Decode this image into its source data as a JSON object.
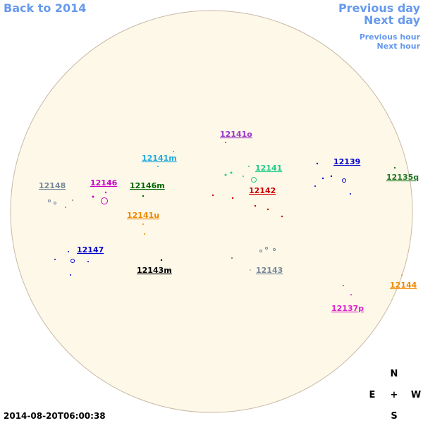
{
  "nav": {
    "back": "Back to 2014",
    "previous_day": "Previous day",
    "next_day": "Next day",
    "previous_hour": "Previous hour",
    "next_hour": "Next hour"
  },
  "timestamp": "2014-08-20T06:00:38",
  "compass": {
    "north": "N",
    "east": "E",
    "center": "+",
    "west": "W",
    "south": "S"
  },
  "regions": [
    {
      "label": "12141o",
      "color": "#9933cc"
    },
    {
      "label": "12141m",
      "color": "#22aadd"
    },
    {
      "label": "12141",
      "color": "#22cc88"
    },
    {
      "label": "12139",
      "color": "#0000cc"
    },
    {
      "label": "12135q",
      "color": "#227722"
    },
    {
      "label": "12148",
      "color": "#778899"
    },
    {
      "label": "12146",
      "color": "#cc00cc"
    },
    {
      "label": "12146m",
      "color": "#006600"
    },
    {
      "label": "12142",
      "color": "#cc0000"
    },
    {
      "label": "12141u",
      "color": "#ee8800"
    },
    {
      "label": "12147",
      "color": "#0000cc"
    },
    {
      "label": "12143m",
      "color": "#000000"
    },
    {
      "label": "12143",
      "color": "#778899"
    },
    {
      "label": "12144",
      "color": "#ee8800"
    },
    {
      "label": "12137p",
      "color": "#dd22cc"
    }
  ]
}
